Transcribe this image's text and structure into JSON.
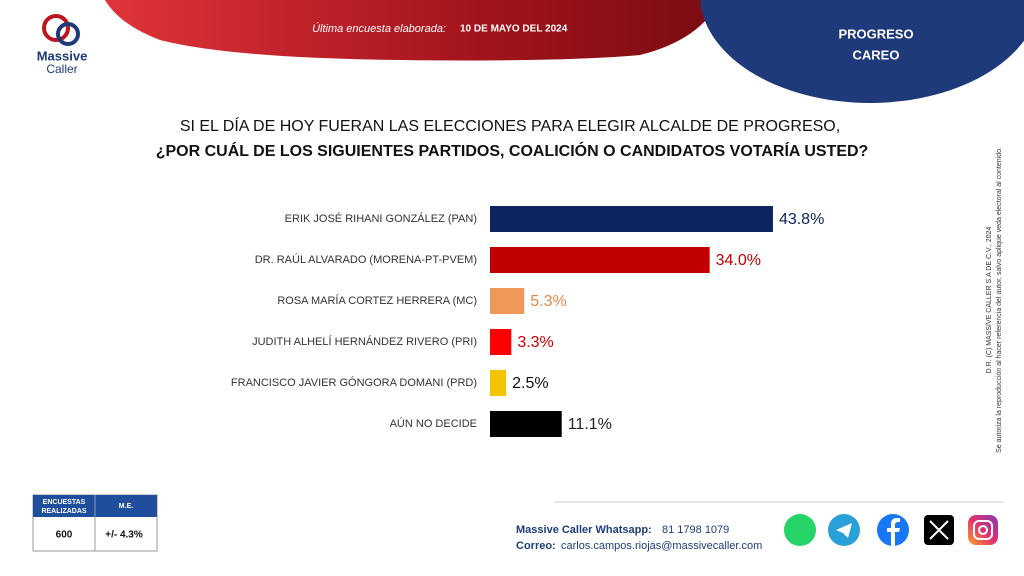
{
  "header": {
    "brand": [
      "Massive",
      "Caller"
    ],
    "survey_label": "Última encuesta elaborada:",
    "survey_date": "10 DE MAYO DEL 2024",
    "place": "PROGRESO",
    "kind": "CAREO"
  },
  "chart_data": {
    "type": "hbar",
    "title": "SI EL DÍA DE HOY FUERAN LAS ELECCIONES PARA ELEGIR ALCALDE DE PROGRESO,",
    "subtitle": "¿POR CUÁL DE LOS SIGUIENTES PARTIDOS, COALICIÓN O CANDIDATOS VOTARÍA USTED?",
    "categories": [
      "ERIK JOSÉ RIHANI GONZÁLEZ (PAN)",
      "DR. RAÚL ALVARADO (MORENA-PT-PVEM)",
      "ROSA MARÍA CORTEZ HERRERA (MC)",
      "JUDITH ALHELÍ HERNÁNDEZ RIVERO (PRI)",
      "FRANCISCO JAVIER GÓNGORA DOMANI (PRD)",
      "AÚN NO DECIDE"
    ],
    "values": [
      43.8,
      34.0,
      5.3,
      3.3,
      2.5,
      11.1
    ],
    "value_labels": [
      "43.8%",
      "34.0%",
      "5.3%",
      "3.3%",
      "2.5%",
      "11.1%"
    ],
    "colors": [
      "#0d2460",
      "#c00000",
      "#f0975a",
      "#ff0000",
      "#f5c400",
      "#000000"
    ],
    "label_colors": [
      "#0d2460",
      "#c00000",
      "#e8894a",
      "#d00000",
      "#111111",
      "#222222"
    ]
  },
  "legal": [
    "D.R. (C) MASSIVE CALLER S.A DE C.V., 2024",
    "Se autoriza la reproducción al hacer referencia del autor, salvo aplique veda electoral al contenido."
  ],
  "table": {
    "header": [
      [
        "ENCUESTAS",
        "REALIZADAS"
      ],
      [
        "M.E."
      ]
    ],
    "row": [
      "600",
      "+/- 4.3%"
    ]
  },
  "footer": {
    "whatsapp_label": "Massive Caller Whatsapp:",
    "whatsapp": "81 1798 1079",
    "email_label": "Correo:",
    "email": "carlos.campos.riojas@massivecaller.com"
  }
}
